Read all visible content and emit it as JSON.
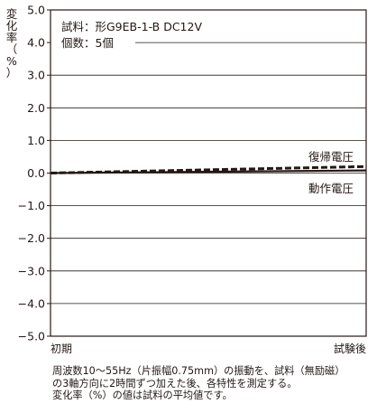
{
  "chart_data": {
    "type": "line",
    "ylabel": "変化率（%）",
    "ylim": [
      -5.0,
      5.0
    ],
    "yticks": [
      "5.0",
      "4.0",
      "3.0",
      "2.0",
      "1.0",
      "0.0",
      "−1.0",
      "−2.0",
      "−3.0",
      "−4.0",
      "−5.0"
    ],
    "ytick_values": [
      5,
      4,
      3,
      2,
      1,
      0,
      -1,
      -2,
      -3,
      -4,
      -5
    ],
    "categories": [
      "初期",
      "試験後"
    ],
    "annotations": [
      "試料：形G9EB-1-B  DC12V",
      "個数：5個"
    ],
    "grid": true,
    "series": [
      {
        "name": "復帰電圧",
        "values": [
          0.0,
          0.2
        ],
        "style": "dashed",
        "color": "#231815"
      },
      {
        "name": "動作電圧",
        "values": [
          0.0,
          0.08
        ],
        "style": "solid",
        "color": "#231815"
      }
    ]
  },
  "note": {
    "lines": [
      "周波数10〜55Hz（片振幅0.75mm）の振動を、試料（無励磁）",
      "の3軸方向に2時間ずつ加えた後、各特性を測定する。",
      "変化率（%）の値は試料の平均値です。"
    ]
  }
}
